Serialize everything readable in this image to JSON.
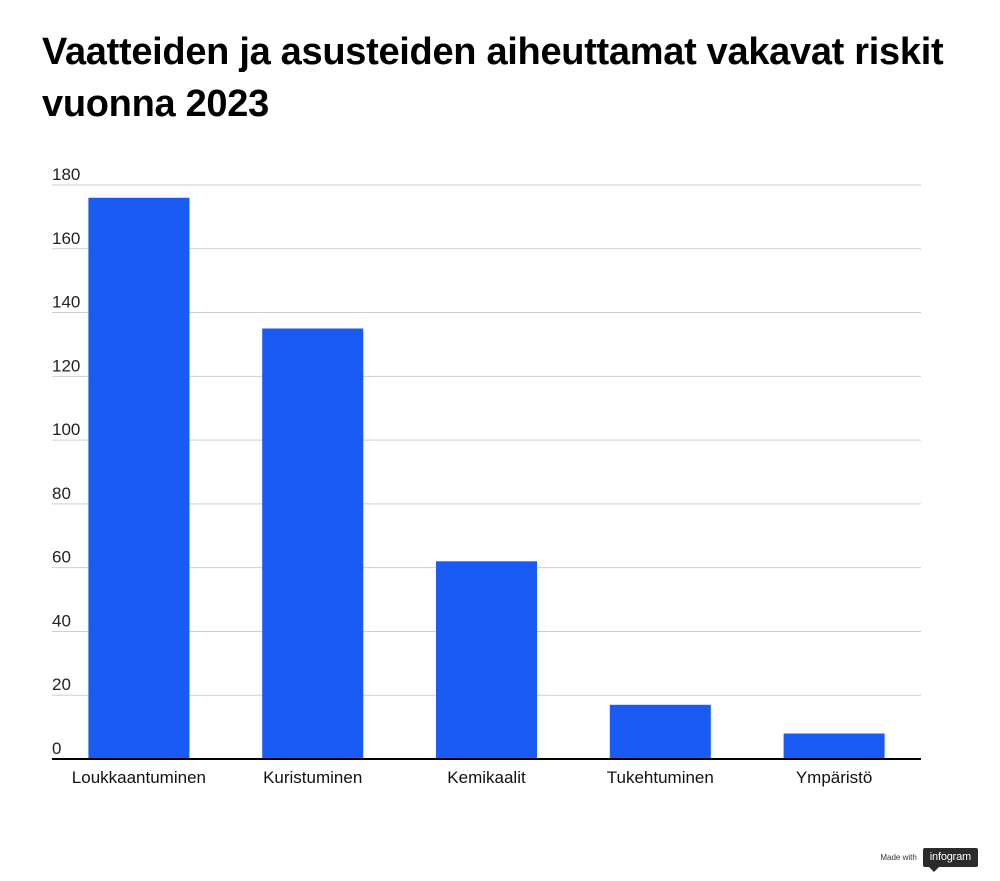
{
  "title": "Vaatteiden ja asusteiden aiheuttamat vakavat riskit vuonna 2023",
  "footer": {
    "made_with": "Made with",
    "brand": "infogram"
  },
  "colors": {
    "bar": "#1a5cf3",
    "grid": "#cfcfcf",
    "axis": "#000000"
  },
  "chart_data": {
    "type": "bar",
    "title": "Vaatteiden ja asusteiden aiheuttamat vakavat riskit vuonna 2023",
    "categories": [
      "Loukkaantuminen",
      "Kuristuminen",
      "Kemikaalit",
      "Tukehtuminen",
      "Ympäristö"
    ],
    "values": [
      176,
      135,
      62,
      17,
      8
    ],
    "xlabel": "",
    "ylabel": "",
    "ylim": [
      0,
      180
    ],
    "yticks": [
      0,
      20,
      40,
      60,
      80,
      100,
      120,
      140,
      160,
      180
    ],
    "grid": true,
    "legend": "none"
  }
}
